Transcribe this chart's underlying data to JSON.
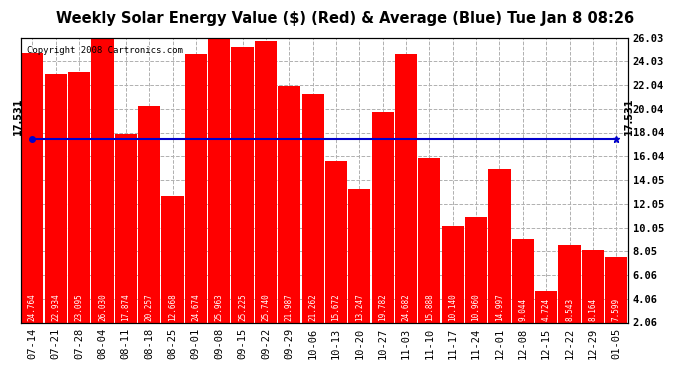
{
  "title": "Weekly Solar Energy Value ($) (Red) & Average (Blue) Tue Jan 8 08:26",
  "copyright": "Copyright 2008 Cartronics.com",
  "categories": [
    "07-14",
    "07-21",
    "07-28",
    "08-04",
    "08-11",
    "08-18",
    "08-25",
    "09-01",
    "09-08",
    "09-15",
    "09-22",
    "09-29",
    "10-06",
    "10-13",
    "10-20",
    "10-27",
    "11-03",
    "11-10",
    "11-17",
    "11-24",
    "12-01",
    "12-08",
    "12-15",
    "12-22",
    "12-29",
    "01-05"
  ],
  "values": [
    24.764,
    22.934,
    23.095,
    26.03,
    17.874,
    20.257,
    12.668,
    24.674,
    25.963,
    25.225,
    25.74,
    21.987,
    21.262,
    15.672,
    13.247,
    19.782,
    24.682,
    15.888,
    10.14,
    10.96,
    14.997,
    9.044,
    4.724,
    8.543,
    8.164,
    7.599
  ],
  "average": 17.531,
  "bar_color": "#ff0000",
  "average_color": "#0000cc",
  "background_color": "#ffffff",
  "grid_color": "#b0b0b0",
  "ylim_min": 2.06,
  "ylim_max": 26.03,
  "yticks": [
    2.06,
    4.06,
    6.06,
    8.05,
    10.05,
    12.05,
    14.05,
    16.04,
    18.04,
    20.04,
    22.04,
    24.03,
    26.03
  ],
  "average_label": "17.531",
  "bar_label_fontsize": 5.5,
  "title_fontsize": 10.5,
  "copyright_fontsize": 6.5,
  "tick_fontsize": 7.5,
  "avg_label_fontsize": 7.0
}
